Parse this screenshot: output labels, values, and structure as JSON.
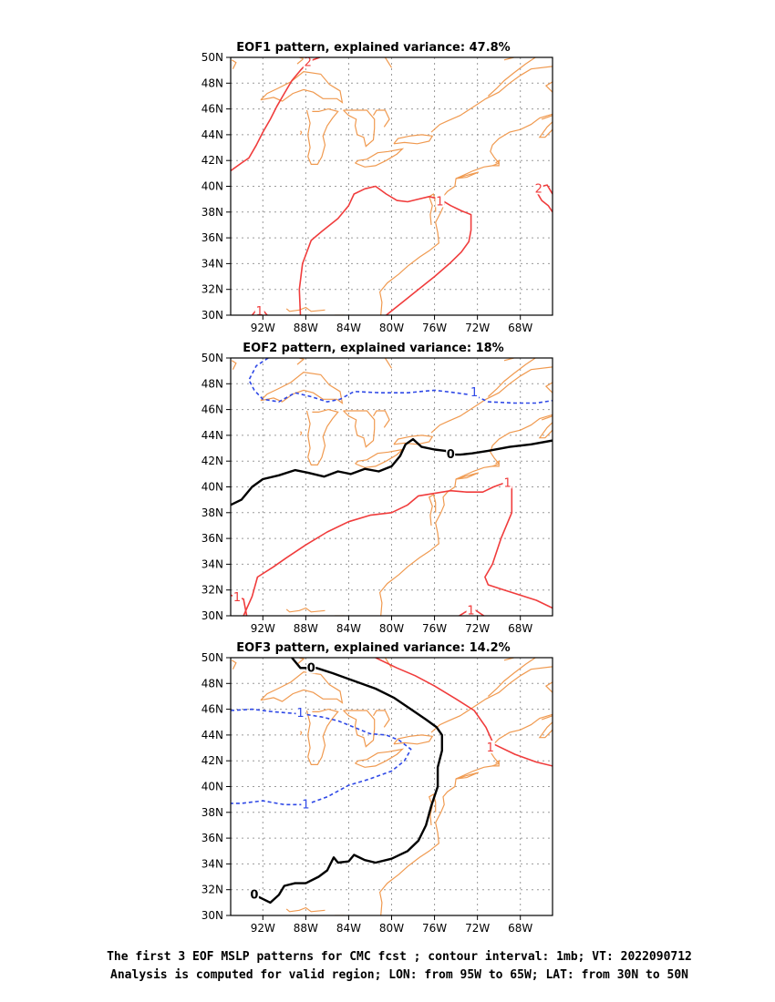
{
  "colors": {
    "positive": "#f03c3c",
    "negative": "#2e48e6",
    "zero": "#000000",
    "coast": "#f09a50",
    "grid": "#9a9a9a"
  },
  "caption": {
    "line1": "The first 3 EOF MSLP patterns for CMC fcst ; contour interval: 1mb; VT: 2022090712",
    "line2": "Analysis is computed for valid region; LON: from 95W to 65W; LAT: from 30N to 50N"
  },
  "chart_data": [
    {
      "type": "contour-map",
      "title": "EOF1 pattern, explained variance: 47.8%",
      "xlim": [
        -95,
        -65
      ],
      "ylim": [
        30,
        50
      ],
      "x_tick_labels": [
        "92W",
        "88W",
        "84W",
        "80W",
        "76W",
        "72W",
        "68W"
      ],
      "y_tick_labels": [
        "30N",
        "32N",
        "34N",
        "36N",
        "38N",
        "40N",
        "42N",
        "44N",
        "46N",
        "48N",
        "50N"
      ],
      "grid": true,
      "contours": [
        {
          "level": 2,
          "label": "2",
          "style": "positive",
          "points": [
            [
              -95,
              41.2
            ],
            [
              -94,
              41.8
            ],
            [
              -93.3,
              42.2
            ],
            [
              -92.6,
              43.2
            ],
            [
              -92.0,
              44.2
            ],
            [
              -91.3,
              45.2
            ],
            [
              -90.7,
              46.2
            ],
            [
              -90.0,
              47.2
            ],
            [
              -89.3,
              48.2
            ],
            [
              -88.5,
              49.0
            ],
            [
              -87.7,
              49.7
            ],
            [
              -86.7,
              50
            ]
          ]
        },
        {
          "level": 2,
          "label": "2",
          "style": "positive",
          "points": [
            [
              -65,
              38.0
            ],
            [
              -65.4,
              38.5
            ],
            [
              -66.0,
              38.9
            ],
            [
              -66.5,
              39.6
            ],
            [
              -66.0,
              40.0
            ],
            [
              -65.5,
              40.1
            ],
            [
              -65,
              39.4
            ]
          ]
        },
        {
          "level": 1,
          "label": "1",
          "style": "positive",
          "points": [
            [
              -88.5,
              30
            ],
            [
              -88.6,
              32.0
            ],
            [
              -88.3,
              34.0
            ],
            [
              -87.5,
              35.8
            ],
            [
              -86.5,
              36.5
            ],
            [
              -85.0,
              37.5
            ],
            [
              -84.0,
              38.5
            ],
            [
              -83.5,
              39.4
            ],
            [
              -82.5,
              39.8
            ],
            [
              -81.5,
              40.0
            ],
            [
              -80.5,
              39.4
            ],
            [
              -79.5,
              38.9
            ],
            [
              -78.5,
              38.8
            ],
            [
              -77.5,
              39.0
            ],
            [
              -76.5,
              39.2
            ],
            [
              -75.5,
              39.0
            ],
            [
              -74.5,
              38.5
            ],
            [
              -73.5,
              38.1
            ],
            [
              -72.6,
              37.8
            ],
            [
              -72.6,
              36.6
            ],
            [
              -72.8,
              35.7
            ],
            [
              -73.5,
              34.9
            ],
            [
              -74.6,
              34.0
            ],
            [
              -76.0,
              33.0
            ],
            [
              -77.5,
              32.0
            ],
            [
              -79.0,
              31.0
            ],
            [
              -80.5,
              30
            ]
          ]
        },
        {
          "level": 1,
          "label": "1",
          "style": "positive",
          "points": [
            [
              -93.0,
              30
            ],
            [
              -92.3,
              30.7
            ],
            [
              -91.6,
              30
            ]
          ]
        }
      ],
      "contour_labels": [
        {
          "text": "2",
          "lon": -87.8,
          "lat": 49.6,
          "style": "positive"
        },
        {
          "text": "1",
          "lon": -75.5,
          "lat": 38.8,
          "style": "positive"
        },
        {
          "text": "2",
          "lon": -66.3,
          "lat": 39.8,
          "style": "positive"
        },
        {
          "text": "1",
          "lon": -92.3,
          "lat": 30.3,
          "style": "positive"
        }
      ]
    },
    {
      "type": "contour-map",
      "title": "EOF2 pattern, explained variance: 18%",
      "xlim": [
        -95,
        -65
      ],
      "ylim": [
        30,
        50
      ],
      "x_tick_labels": [
        "92W",
        "88W",
        "84W",
        "80W",
        "76W",
        "72W",
        "68W"
      ],
      "y_tick_labels": [
        "30N",
        "32N",
        "34N",
        "36N",
        "38N",
        "40N",
        "42N",
        "44N",
        "46N",
        "48N",
        "50N"
      ],
      "grid": true,
      "contours": [
        {
          "level": -1,
          "label": "1",
          "style": "negative",
          "points": [
            [
              -91.5,
              50
            ],
            [
              -92.6,
              49.4
            ],
            [
              -93.3,
              48.3
            ],
            [
              -92.8,
              47.5
            ],
            [
              -92.0,
              46.8
            ],
            [
              -90.5,
              46.6
            ],
            [
              -89.0,
              47.3
            ],
            [
              -87.5,
              47.0
            ],
            [
              -86.0,
              46.6
            ],
            [
              -84.8,
              46.8
            ],
            [
              -83.5,
              47.4
            ],
            [
              -81.0,
              47.3
            ],
            [
              -78.5,
              47.3
            ],
            [
              -76.0,
              47.5
            ],
            [
              -74.0,
              47.3
            ],
            [
              -72.3,
              47.1
            ],
            [
              -71.0,
              46.6
            ],
            [
              -68.5,
              46.5
            ],
            [
              -66.5,
              46.5
            ],
            [
              -65,
              46.7
            ]
          ]
        },
        {
          "level": 0,
          "label": "0",
          "style": "zero",
          "points": [
            [
              -95,
              38.6
            ],
            [
              -94.0,
              39.0
            ],
            [
              -93.0,
              40.0
            ],
            [
              -92.0,
              40.6
            ],
            [
              -90.5,
              40.9
            ],
            [
              -89.0,
              41.3
            ],
            [
              -87.8,
              41.1
            ],
            [
              -86.3,
              40.8
            ],
            [
              -85.0,
              41.2
            ],
            [
              -83.8,
              41.0
            ],
            [
              -82.5,
              41.4
            ],
            [
              -81.2,
              41.2
            ],
            [
              -80.0,
              41.6
            ],
            [
              -79.2,
              42.4
            ],
            [
              -78.7,
              43.3
            ],
            [
              -78.0,
              43.7
            ],
            [
              -77.2,
              43.1
            ],
            [
              -76.0,
              42.9
            ],
            [
              -75.0,
              42.8
            ],
            [
              -74.2,
              42.5
            ],
            [
              -73.6,
              42.5
            ],
            [
              -72.5,
              42.6
            ],
            [
              -71.0,
              42.8
            ],
            [
              -69.0,
              43.1
            ],
            [
              -67.0,
              43.3
            ],
            [
              -65,
              43.6
            ]
          ]
        },
        {
          "level": 1,
          "label": "1",
          "style": "positive",
          "points": [
            [
              -93.8,
              30.0
            ],
            [
              -93.0,
              31.5
            ],
            [
              -92.5,
              33.0
            ],
            [
              -91.0,
              33.8
            ],
            [
              -89.8,
              34.5
            ],
            [
              -88.0,
              35.5
            ],
            [
              -86.0,
              36.5
            ],
            [
              -84.0,
              37.3
            ],
            [
              -82.0,
              37.8
            ],
            [
              -80.0,
              38.0
            ],
            [
              -78.5,
              38.6
            ],
            [
              -77.5,
              39.3
            ],
            [
              -76.0,
              39.5
            ],
            [
              -74.5,
              39.7
            ],
            [
              -73.0,
              39.6
            ],
            [
              -71.5,
              39.6
            ],
            [
              -70.5,
              40.0
            ],
            [
              -69.5,
              40.3
            ],
            [
              -68.8,
              40.0
            ],
            [
              -68.8,
              38.0
            ],
            [
              -69.8,
              36.0
            ],
            [
              -70.6,
              34.0
            ],
            [
              -71.3,
              33.0
            ],
            [
              -71.0,
              32.4
            ],
            [
              -69.5,
              32.0
            ],
            [
              -68.0,
              31.6
            ],
            [
              -66.5,
              31.2
            ],
            [
              -65,
              30.6
            ]
          ]
        },
        {
          "level": 1,
          "label": "1",
          "style": "positive",
          "points": [
            [
              -95,
              31.6
            ],
            [
              -93.8,
              31.3
            ],
            [
              -93.5,
              30
            ]
          ]
        },
        {
          "level": 1,
          "label": "1",
          "style": "positive",
          "points": [
            [
              -73.7,
              30
            ],
            [
              -72.5,
              30.6
            ],
            [
              -71.4,
              30
            ]
          ]
        }
      ],
      "contour_labels": [
        {
          "text": "1",
          "lon": -72.3,
          "lat": 47.3,
          "style": "negative"
        },
        {
          "text": "0",
          "lon": -74.5,
          "lat": 42.5,
          "style": "zero"
        },
        {
          "text": "1",
          "lon": -69.2,
          "lat": 40.3,
          "style": "positive"
        },
        {
          "text": "1",
          "lon": -94.4,
          "lat": 31.4,
          "style": "positive"
        },
        {
          "text": "1",
          "lon": -72.6,
          "lat": 30.4,
          "style": "positive"
        }
      ]
    },
    {
      "type": "contour-map",
      "title": "EOF3 pattern, explained variance: 14.2%",
      "xlim": [
        -95,
        -65
      ],
      "ylim": [
        30,
        50
      ],
      "x_tick_labels": [
        "92W",
        "88W",
        "84W",
        "80W",
        "76W",
        "72W",
        "68W"
      ],
      "y_tick_labels": [
        "30N",
        "32N",
        "34N",
        "36N",
        "38N",
        "40N",
        "42N",
        "44N",
        "46N",
        "48N",
        "50N"
      ],
      "grid": true,
      "contours": [
        {
          "level": 0,
          "label": "0",
          "style": "zero",
          "points": [
            [
              -89.3,
              50
            ],
            [
              -88.5,
              49.2
            ],
            [
              -87.0,
              49.2
            ],
            [
              -85.5,
              48.8
            ],
            [
              -83.5,
              48.2
            ],
            [
              -81.5,
              47.6
            ],
            [
              -79.8,
              46.9
            ],
            [
              -78.2,
              46.0
            ],
            [
              -76.8,
              45.2
            ],
            [
              -75.8,
              44.6
            ],
            [
              -75.3,
              44.0
            ],
            [
              -75.3,
              42.8
            ],
            [
              -75.7,
              41.5
            ],
            [
              -75.7,
              40.0
            ],
            [
              -76.3,
              38.5
            ],
            [
              -76.8,
              37.0
            ],
            [
              -77.5,
              35.8
            ],
            [
              -78.5,
              35.0
            ],
            [
              -80.0,
              34.4
            ],
            [
              -81.5,
              34.1
            ],
            [
              -82.5,
              34.3
            ],
            [
              -83.5,
              34.7
            ],
            [
              -84.0,
              34.2
            ],
            [
              -85.0,
              34.1
            ],
            [
              -85.4,
              34.5
            ],
            [
              -86.0,
              33.5
            ],
            [
              -86.8,
              33.0
            ],
            [
              -88.0,
              32.5
            ],
            [
              -89.0,
              32.5
            ],
            [
              -90.0,
              32.3
            ],
            [
              -90.5,
              31.6
            ],
            [
              -91.3,
              31.0
            ],
            [
              -92.3,
              31.4
            ],
            [
              -93.1,
              31.6
            ]
          ]
        },
        {
          "level": -1,
          "label": "1",
          "style": "negative",
          "points": [
            [
              -95,
              45.9
            ],
            [
              -93.0,
              46.0
            ],
            [
              -91.0,
              45.8
            ],
            [
              -89.5,
              45.7
            ],
            [
              -88.0,
              45.6
            ],
            [
              -86.5,
              45.4
            ],
            [
              -85.0,
              45.1
            ],
            [
              -83.5,
              44.6
            ],
            [
              -82.0,
              44.1
            ],
            [
              -80.5,
              44.0
            ],
            [
              -79.3,
              43.6
            ],
            [
              -78.2,
              42.9
            ],
            [
              -78.8,
              42.0
            ],
            [
              -80.0,
              41.2
            ],
            [
              -82.0,
              40.6
            ],
            [
              -84.0,
              40.1
            ],
            [
              -86.0,
              39.2
            ],
            [
              -88.0,
              38.6
            ],
            [
              -90.0,
              38.6
            ],
            [
              -92.0,
              38.9
            ],
            [
              -94.0,
              38.7
            ],
            [
              -95,
              38.7
            ]
          ]
        },
        {
          "level": 1,
          "label": "1",
          "style": "positive",
          "points": [
            [
              -81.5,
              50
            ],
            [
              -79.5,
              49.2
            ],
            [
              -77.8,
              48.6
            ],
            [
              -76.0,
              47.8
            ],
            [
              -74.0,
              46.8
            ],
            [
              -72.3,
              45.9
            ],
            [
              -71.2,
              44.6
            ],
            [
              -70.5,
              43.3
            ],
            [
              -68.5,
              42.5
            ],
            [
              -66.5,
              41.9
            ],
            [
              -65,
              41.6
            ]
          ]
        }
      ],
      "contour_labels": [
        {
          "text": "0",
          "lon": -87.5,
          "lat": 49.2,
          "style": "zero"
        },
        {
          "text": "1",
          "lon": -88.5,
          "lat": 45.7,
          "style": "negative"
        },
        {
          "text": "1",
          "lon": -88.0,
          "lat": 38.6,
          "style": "negative"
        },
        {
          "text": "1",
          "lon": -70.8,
          "lat": 43.0,
          "style": "positive"
        },
        {
          "text": "0",
          "lon": -92.8,
          "lat": 31.6,
          "style": "zero"
        }
      ]
    }
  ]
}
